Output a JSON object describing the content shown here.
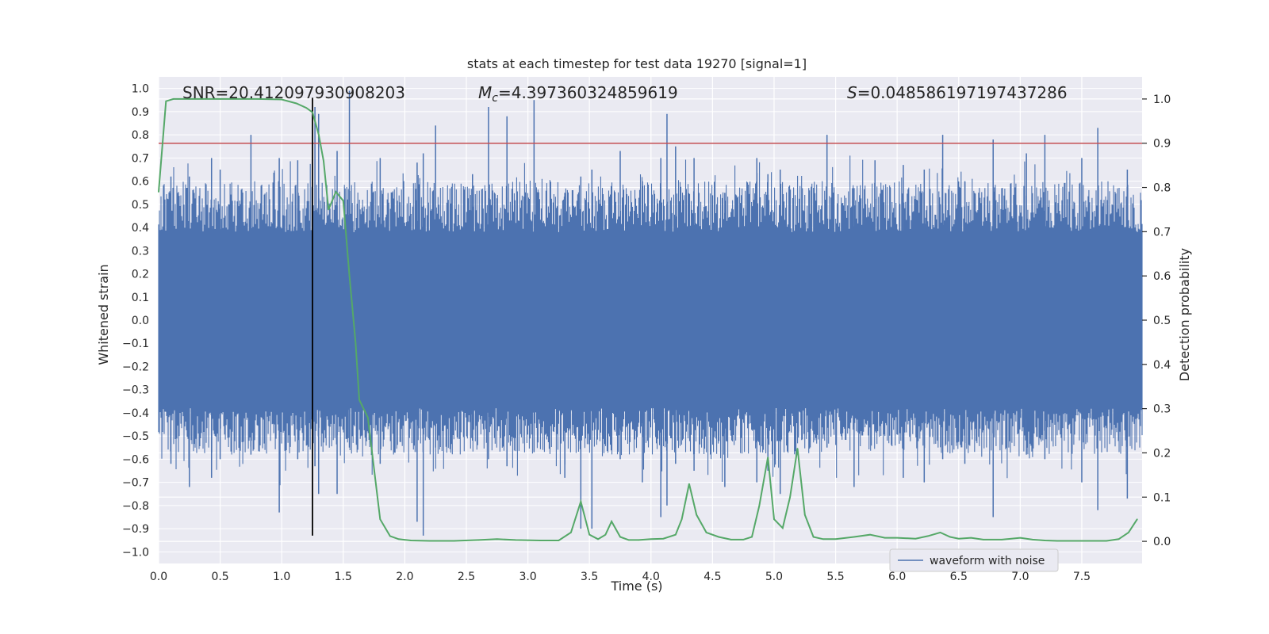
{
  "chart_data": {
    "type": "line",
    "title": "stats at each timestep for test data 19270 [signal=1]",
    "xlabel": "Time (s)",
    "ylabel": "Whitened strain",
    "ylabel_right": "Detection probability",
    "xlim": [
      0.0,
      7.99
    ],
    "ylim": [
      -1.05,
      1.05
    ],
    "ylim_right": [
      -0.05,
      1.05
    ],
    "xticks": [
      "0.0",
      "0.5",
      "1.0",
      "1.5",
      "2.0",
      "2.5",
      "3.0",
      "3.5",
      "4.0",
      "4.5",
      "5.0",
      "5.5",
      "6.0",
      "6.5",
      "7.0",
      "7.5"
    ],
    "yticks": [
      "1.0",
      "0.9",
      "0.8",
      "0.7",
      "0.6",
      "0.5",
      "0.4",
      "0.3",
      "0.2",
      "0.1",
      "0.0",
      "−0.1",
      "−0.2",
      "−0.3",
      "−0.4",
      "−0.5",
      "−0.6",
      "−0.7",
      "−0.8",
      "−0.9",
      "−1.0"
    ],
    "yticks_right": [
      "1.0",
      "0.9",
      "0.8",
      "0.7",
      "0.6",
      "0.5",
      "0.4",
      "0.3",
      "0.2",
      "0.1",
      "0.0"
    ],
    "grid": true,
    "legend": {
      "entries": [
        "waveform with noise"
      ],
      "placement": "lower-right"
    },
    "annotations": {
      "snr": "SNR=20.412097930908203",
      "mc_symbol": "M",
      "mc_sub": "c",
      "mc_value": "=4.397360324859619",
      "s_symbol": "S",
      "s_value": "=0.048586197197437286"
    },
    "threshold_line": {
      "axis": "right",
      "value": 0.9,
      "color": "#c44e52"
    },
    "peak_marker": {
      "x": 1.25,
      "y_range": [
        -0.93,
        0.96
      ],
      "color": "#000000"
    },
    "waveform": {
      "name": "waveform with noise",
      "color": "#4c72b0",
      "t_start": 0.0,
      "t_end": 7.99,
      "core_amplitude": 0.35,
      "spikes": [
        [
          0.1,
          0.62,
          -0.62
        ],
        [
          0.25,
          0.62,
          -0.72
        ],
        [
          0.43,
          0.7,
          -0.68
        ],
        [
          0.5,
          0.65,
          -0.6
        ],
        [
          0.75,
          0.8,
          -0.58
        ],
        [
          0.98,
          0.7,
          -0.83
        ],
        [
          1.13,
          0.69,
          -0.6
        ],
        [
          1.27,
          0.92,
          -0.63
        ],
        [
          1.3,
          0.89,
          -0.75
        ],
        [
          1.45,
          0.73,
          -0.75
        ],
        [
          1.55,
          0.99,
          -0.55
        ],
        [
          1.8,
          0.7,
          -0.62
        ],
        [
          2.1,
          0.68,
          -0.87
        ],
        [
          2.15,
          0.72,
          -0.93
        ],
        [
          2.25,
          0.84,
          -0.55
        ],
        [
          2.55,
          0.63,
          -0.52
        ],
        [
          2.68,
          0.92,
          -0.6
        ],
        [
          2.83,
          0.88,
          -0.63
        ],
        [
          3.05,
          0.95,
          -0.57
        ],
        [
          3.3,
          0.55,
          -0.68
        ],
        [
          3.43,
          0.62,
          -0.9
        ],
        [
          3.52,
          0.65,
          -0.9
        ],
        [
          3.75,
          0.73,
          -0.6
        ],
        [
          3.93,
          0.6,
          -0.7
        ],
        [
          4.08,
          0.7,
          -0.85
        ],
        [
          4.13,
          0.89,
          -0.8
        ],
        [
          4.2,
          0.75,
          -0.62
        ],
        [
          4.35,
          0.7,
          -0.65
        ],
        [
          4.6,
          0.55,
          -0.72
        ],
        [
          4.86,
          0.7,
          -0.7
        ],
        [
          4.95,
          0.63,
          -0.65
        ],
        [
          5.05,
          0.65,
          -0.75
        ],
        [
          5.43,
          0.8,
          -0.55
        ],
        [
          5.65,
          0.57,
          -0.72
        ],
        [
          5.82,
          0.69,
          -0.48
        ],
        [
          6.05,
          0.67,
          -0.68
        ],
        [
          6.22,
          0.65,
          -0.7
        ],
        [
          6.37,
          0.8,
          -0.6
        ],
        [
          6.55,
          0.6,
          -0.62
        ],
        [
          6.78,
          0.78,
          -0.85
        ],
        [
          7.05,
          0.72,
          -0.58
        ],
        [
          7.2,
          0.8,
          -0.6
        ],
        [
          7.5,
          0.7,
          -0.7
        ],
        [
          7.63,
          0.83,
          -0.82
        ],
        [
          7.87,
          0.65,
          -0.77
        ]
      ]
    },
    "probability": {
      "name": "detection probability",
      "color": "#55a868",
      "x": [
        0.0,
        0.06,
        0.12,
        0.25,
        0.5,
        0.8,
        1.0,
        1.12,
        1.2,
        1.25,
        1.3,
        1.34,
        1.38,
        1.44,
        1.5,
        1.55,
        1.6,
        1.63,
        1.7,
        1.8,
        1.88,
        1.95,
        2.05,
        2.2,
        2.4,
        2.6,
        2.75,
        2.9,
        3.1,
        3.25,
        3.35,
        3.43,
        3.5,
        3.57,
        3.63,
        3.68,
        3.75,
        3.82,
        3.9,
        4.0,
        4.1,
        4.2,
        4.25,
        4.31,
        4.37,
        4.45,
        4.55,
        4.65,
        4.75,
        4.82,
        4.88,
        4.95,
        5.0,
        5.07,
        5.13,
        5.19,
        5.25,
        5.32,
        5.4,
        5.5,
        5.65,
        5.78,
        5.9,
        6.0,
        6.15,
        6.25,
        6.35,
        6.43,
        6.5,
        6.6,
        6.7,
        6.85,
        7.0,
        7.1,
        7.2,
        7.3,
        7.5,
        7.7,
        7.8,
        7.88,
        7.95
      ],
      "y": [
        0.79,
        0.995,
        1.0,
        1.0,
        1.0,
        1.0,
        0.999,
        0.99,
        0.98,
        0.97,
        0.92,
        0.86,
        0.75,
        0.79,
        0.77,
        0.6,
        0.45,
        0.32,
        0.28,
        0.05,
        0.012,
        0.005,
        0.002,
        0.001,
        0.001,
        0.003,
        0.005,
        0.003,
        0.002,
        0.002,
        0.02,
        0.09,
        0.015,
        0.005,
        0.015,
        0.045,
        0.01,
        0.003,
        0.003,
        0.005,
        0.006,
        0.015,
        0.05,
        0.13,
        0.06,
        0.02,
        0.01,
        0.004,
        0.004,
        0.01,
        0.08,
        0.19,
        0.05,
        0.03,
        0.1,
        0.21,
        0.06,
        0.01,
        0.005,
        0.005,
        0.01,
        0.015,
        0.008,
        0.008,
        0.006,
        0.012,
        0.02,
        0.01,
        0.006,
        0.008,
        0.004,
        0.004,
        0.008,
        0.004,
        0.002,
        0.001,
        0.001,
        0.001,
        0.005,
        0.02,
        0.05
      ]
    }
  }
}
